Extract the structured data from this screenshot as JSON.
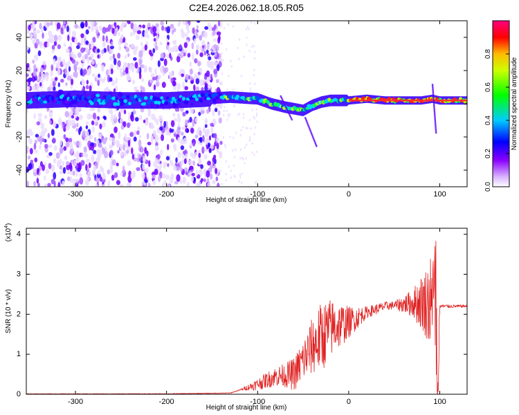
{
  "title": "C2E4.2026.062.18.05.R05",
  "chart_data": [
    {
      "type": "heatmap",
      "name": "spectrogram",
      "xlabel": "Height of straight line (km)",
      "ylabel": "Frequency (Hz)",
      "xlim": [
        -354,
        130
      ],
      "ylim": [
        -50,
        50
      ],
      "xticks": [
        -300,
        -200,
        -100,
        0,
        100
      ],
      "yticks": [
        -40,
        -20,
        0,
        20,
        40
      ],
      "colorbar": {
        "label": "Normalized spectral amplitude",
        "range": [
          0,
          1
        ],
        "ticks": [
          "0.0",
          "0.2",
          "0.4",
          "0.6",
          "0.8"
        ],
        "colormap": [
          "#ffffff",
          "#cc99ff",
          "#7b00ff",
          "#0000ff",
          "#00ffff",
          "#00ff00",
          "#ffff00",
          "#ff0000",
          "#ff0080"
        ]
      },
      "ridge": {
        "x": [
          -354,
          -300,
          -250,
          -200,
          -160,
          -130,
          -100,
          -85,
          -70,
          -60,
          -50,
          -40,
          -30,
          -20,
          -10,
          0,
          20,
          40,
          60,
          80,
          92,
          100,
          130
        ],
        "y": [
          2,
          3,
          2,
          2,
          3,
          4,
          3,
          0,
          -2,
          -3,
          -4,
          -1,
          1,
          2,
          2,
          2,
          3,
          2,
          2,
          2,
          3,
          2,
          2
        ]
      }
    },
    {
      "type": "line",
      "name": "snr",
      "xlabel": "Height of straight line (km)",
      "ylabel": "SNR (10 * v/v)",
      "yscale_label": "(x10",
      "yscale_exp": "4",
      "yscale_close": ")",
      "xlim": [
        -354,
        130
      ],
      "ylim": [
        0,
        4.15
      ],
      "xticks": [
        -300,
        -200,
        -100,
        0,
        100
      ],
      "yticks": [
        0,
        1,
        2,
        3,
        4
      ],
      "color": "#e02020",
      "envelope": {
        "x": [
          -354,
          -200,
          -130,
          -100,
          -80,
          -60,
          -40,
          -20,
          0,
          20,
          40,
          60,
          80,
          90,
          95,
          98,
          100,
          130
        ],
        "y": [
          0.01,
          0.01,
          0.03,
          0.25,
          0.45,
          0.5,
          1.2,
          1.65,
          1.8,
          2.05,
          2.2,
          2.25,
          2.3,
          2.3,
          2.2,
          0.3,
          2.2,
          2.2
        ]
      },
      "noise_amp": {
        "x": [
          -354,
          -120,
          -100,
          -70,
          -50,
          -30,
          -10,
          0,
          20,
          50,
          70,
          85,
          92,
          96,
          100,
          130
        ],
        "y": [
          0.005,
          0.01,
          0.15,
          0.3,
          0.55,
          0.9,
          0.6,
          0.4,
          0.15,
          0.1,
          0.35,
          0.9,
          1.4,
          1.9,
          0.05,
          0.03
        ]
      }
    }
  ]
}
